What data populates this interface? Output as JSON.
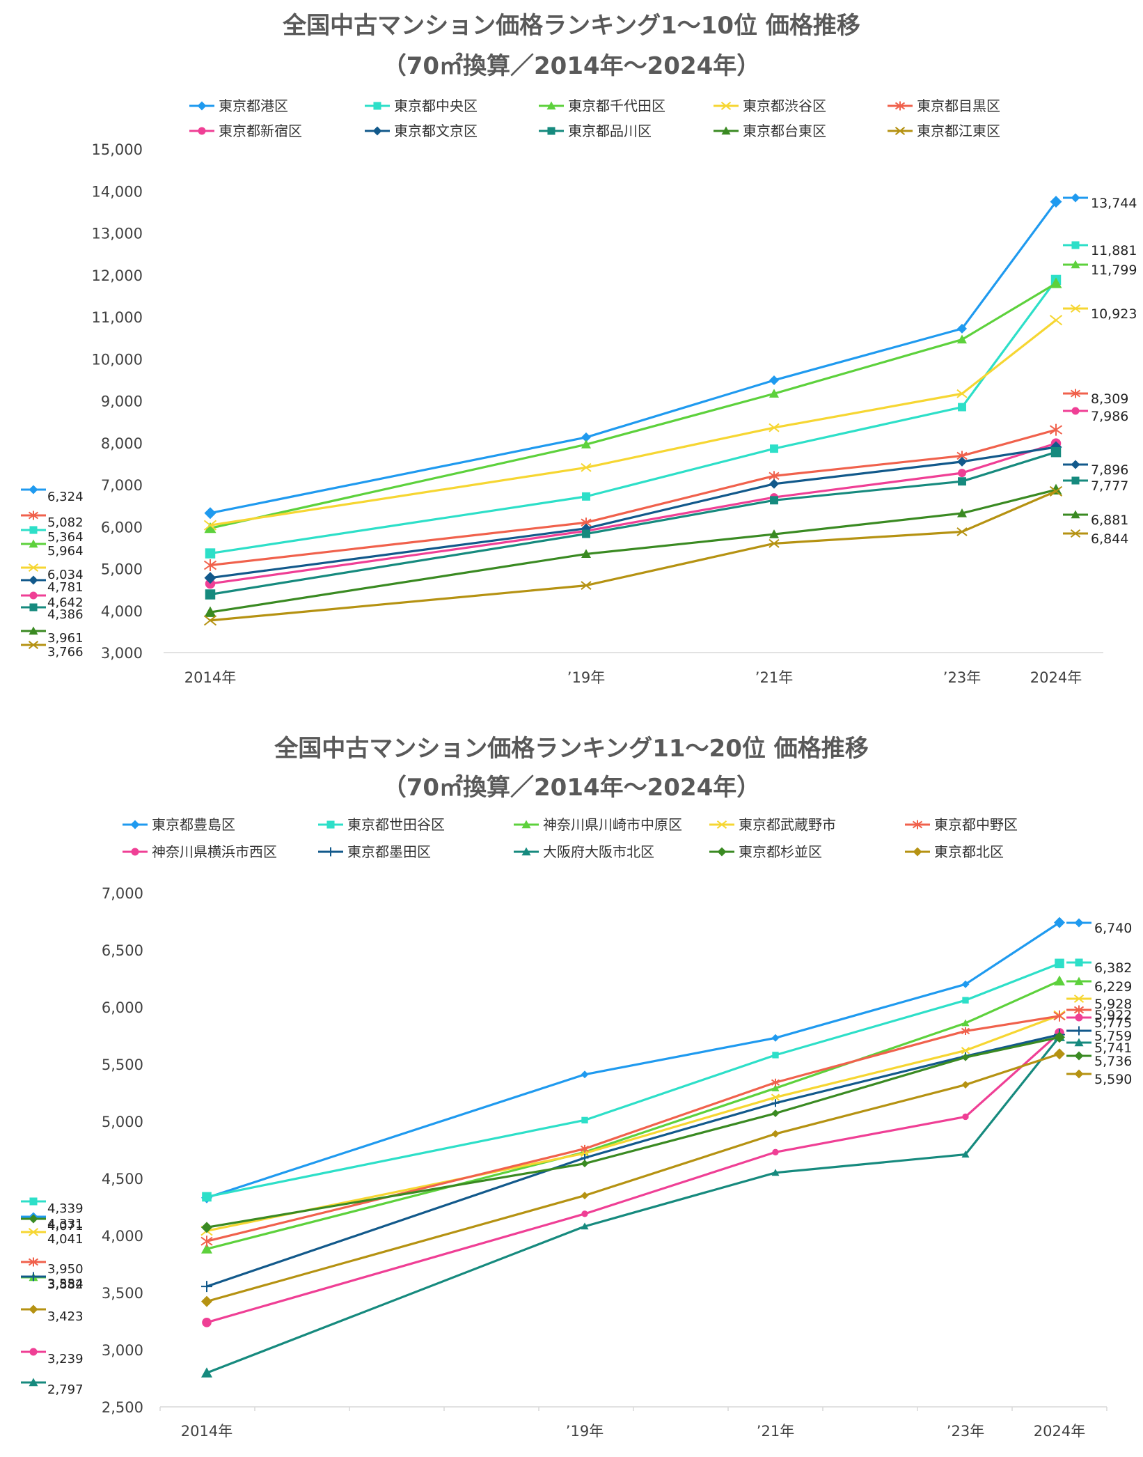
{
  "chart_data": [
    {
      "type": "line",
      "title_line1": "全国中古マンション価格ランキング1～10位 価格推移",
      "title_line2": "（70㎡換算／2014年～2024年）",
      "x": [
        2014,
        2019,
        2021,
        2023,
        2024
      ],
      "x_tick_labels": [
        "2014年",
        "’19年",
        "’21年",
        "’23年",
        "2024年"
      ],
      "ylim": [
        3000,
        15000
      ],
      "y_ticks": [
        3000,
        4000,
        5000,
        6000,
        7000,
        8000,
        9000,
        10000,
        11000,
        12000,
        13000,
        14000,
        15000
      ],
      "y_tick_labels": [
        "3,000",
        "4,000",
        "5,000",
        "6,000",
        "7,000",
        "8,000",
        "9,000",
        "10,000",
        "11,000",
        "12,000",
        "13,000",
        "14,000",
        "15,000"
      ],
      "legend_position": "top",
      "series": [
        {
          "name": "東京都港区",
          "color": "#1F9AEF",
          "marker": "diamond",
          "values": [
            6324,
            8130,
            9490,
            10720,
            13744
          ],
          "start_label": "6,324",
          "end_label": "13,744"
        },
        {
          "name": "東京都中央区",
          "color": "#2DDFC8",
          "marker": "square",
          "values": [
            5364,
            6720,
            7860,
            8850,
            11881
          ],
          "start_label": "5,364",
          "end_label": "11,881"
        },
        {
          "name": "東京都千代田区",
          "color": "#5DD13C",
          "marker": "triangle",
          "values": [
            5964,
            7960,
            9170,
            10460,
            11799
          ],
          "start_label": "5,964",
          "end_label": "11,799"
        },
        {
          "name": "東京都渋谷区",
          "color": "#F6D632",
          "marker": "x",
          "values": [
            6034,
            7410,
            8360,
            9170,
            10923
          ],
          "start_label": "6,034",
          "end_label": "10,923"
        },
        {
          "name": "東京都目黒区",
          "color": "#F0614C",
          "marker": "star",
          "values": [
            5082,
            6100,
            7210,
            7690,
            8309
          ],
          "start_label": "5,082",
          "end_label": "8,309"
        },
        {
          "name": "東京都新宿区",
          "color": "#EF3F95",
          "marker": "circle",
          "values": [
            4642,
            5900,
            6700,
            7280,
            7986
          ],
          "start_label": "4,642",
          "end_label": "7,986"
        },
        {
          "name": "東京都文京区",
          "color": "#12598B",
          "marker": "diamond",
          "values": [
            4781,
            5960,
            7020,
            7550,
            7896
          ],
          "start_label": "4,781",
          "end_label": "7,896"
        },
        {
          "name": "東京都品川区",
          "color": "#168A7E",
          "marker": "square",
          "values": [
            4386,
            5830,
            6630,
            7080,
            7777
          ],
          "start_label": "4,386",
          "end_label": "7,777"
        },
        {
          "name": "東京都台東区",
          "color": "#3A8A22",
          "marker": "triangle",
          "values": [
            3961,
            5350,
            5820,
            6320,
            6881
          ],
          "start_label": "3,961",
          "end_label": "6,881"
        },
        {
          "name": "東京都江東区",
          "color": "#B59212",
          "marker": "x",
          "values": [
            3766,
            4600,
            5600,
            5880,
            6844
          ],
          "start_label": "3,766",
          "end_label": "6,844"
        }
      ]
    },
    {
      "type": "line",
      "title_line1": "全国中古マンション価格ランキング11～20位 価格推移",
      "title_line2": "（70㎡換算／2014年～2024年）",
      "x": [
        2014,
        2019,
        2021,
        2023,
        2024
      ],
      "x_tick_labels": [
        "2014年",
        "’19年",
        "’21年",
        "’23年",
        "2024年"
      ],
      "ylim": [
        2500,
        7000
      ],
      "y_ticks": [
        2500,
        3000,
        3500,
        4000,
        4500,
        5000,
        5500,
        6000,
        6500,
        7000
      ],
      "y_tick_labels": [
        "2,500",
        "3,000",
        "3,500",
        "4,000",
        "4,500",
        "5,000",
        "5,500",
        "6,000",
        "6,500",
        "7,000"
      ],
      "legend_position": "top",
      "series": [
        {
          "name": "東京都豊島区",
          "color": "#1F9AEF",
          "marker": "diamond",
          "values": [
            4331,
            5410,
            5730,
            6200,
            6740
          ],
          "start_label": "4,331",
          "end_label": "6,740"
        },
        {
          "name": "東京都世田谷区",
          "color": "#2DDFC8",
          "marker": "square",
          "values": [
            4339,
            5010,
            5580,
            6060,
            6382
          ],
          "start_label": "4,339",
          "end_label": "6,382"
        },
        {
          "name": "神奈川県川崎市中原区",
          "color": "#5DD13C",
          "marker": "triangle",
          "values": [
            3882,
            4730,
            5290,
            5860,
            6229
          ],
          "start_label": "3,882",
          "end_label": "6,229"
        },
        {
          "name": "東京都武蔵野市",
          "color": "#F6D632",
          "marker": "x",
          "values": [
            4041,
            4720,
            5210,
            5620,
            5928
          ],
          "start_label": "4,041",
          "end_label": "5,928"
        },
        {
          "name": "東京都中野区",
          "color": "#F0614C",
          "marker": "star",
          "values": [
            3950,
            4760,
            5340,
            5790,
            5922
          ],
          "start_label": "3,950",
          "end_label": "5,922"
        },
        {
          "name": "神奈川県横浜市西区",
          "color": "#EF3F95",
          "marker": "circle",
          "values": [
            3239,
            4190,
            4730,
            5040,
            5775
          ],
          "start_label": "3,239",
          "end_label": "5,775"
        },
        {
          "name": "東京都墨田区",
          "color": "#12598B",
          "marker": "plus",
          "values": [
            3554,
            4680,
            5160,
            5570,
            5759
          ],
          "start_label": "3,554",
          "end_label": "5,759"
        },
        {
          "name": "大阪府大阪市北区",
          "color": "#168A7E",
          "marker": "triangle",
          "values": [
            2797,
            4080,
            4550,
            4710,
            5741
          ],
          "start_label": "2,797",
          "end_label": "5,741"
        },
        {
          "name": "東京都杉並区",
          "color": "#3A8A22",
          "marker": "diamond",
          "values": [
            4071,
            4630,
            5070,
            5560,
            5736
          ],
          "start_label": "4,071",
          "end_label": "5,736"
        },
        {
          "name": "東京都北区",
          "color": "#B59212",
          "marker": "diamond",
          "values": [
            3423,
            4350,
            4890,
            5320,
            5590
          ],
          "start_label": "3,423",
          "end_label": "5,590"
        }
      ]
    }
  ]
}
